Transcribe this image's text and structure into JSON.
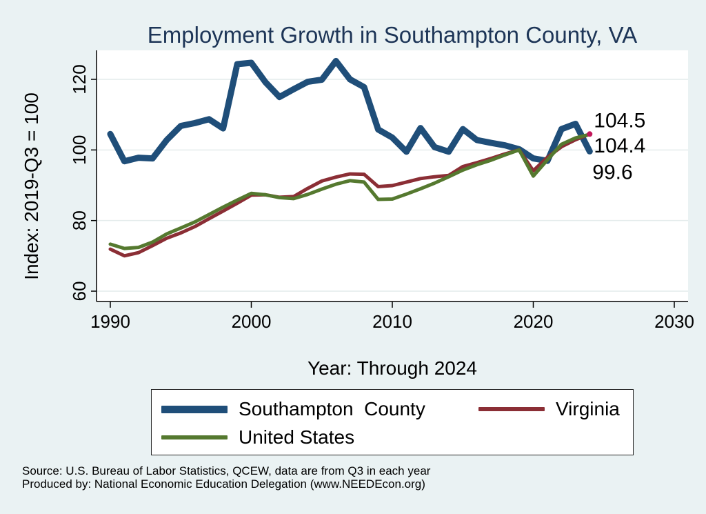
{
  "chart_data": {
    "type": "line",
    "title": "Employment Growth in Southampton County, VA",
    "xlabel": "Year: Through 2024",
    "ylabel": "Index: 2019-Q3 = 100",
    "xlim": [
      1990,
      2030
    ],
    "ylim": [
      57,
      128
    ],
    "x_ticks": [
      1990,
      2000,
      2010,
      2020,
      2030
    ],
    "y_ticks": [
      60,
      80,
      100,
      120
    ],
    "grid": true,
    "legend_position": "bottom",
    "series": [
      {
        "name": "Southampton  County",
        "color": "#1f4e79",
        "x": [
          1990,
          1991,
          1992,
          1993,
          1994,
          1995,
          1996,
          1997,
          1998,
          1999,
          2000,
          2001,
          2002,
          2003,
          2004,
          2005,
          2006,
          2007,
          2008,
          2009,
          2010,
          2011,
          2012,
          2013,
          2014,
          2015,
          2016,
          2017,
          2018,
          2019,
          2020,
          2021,
          2022,
          2023,
          2024
        ],
        "values": [
          104.5,
          96.8,
          97.8,
          97.6,
          102.8,
          106.8,
          107.6,
          108.7,
          106.1,
          124.3,
          124.7,
          119.2,
          115.0,
          117.2,
          119.3,
          119.9,
          125.2,
          120.0,
          117.8,
          105.8,
          103.5,
          99.5,
          106.2,
          100.8,
          99.5,
          105.9,
          102.8,
          102.0,
          101.3,
          100.2,
          97.6,
          96.9,
          105.9,
          107.4,
          99.6
        ]
      },
      {
        "name": "Virginia",
        "color": "#8b2e35",
        "x": [
          1990,
          1991,
          1992,
          1993,
          1994,
          1995,
          1996,
          1997,
          1998,
          1999,
          2000,
          2001,
          2002,
          2003,
          2004,
          2005,
          2006,
          2007,
          2008,
          2009,
          2010,
          2011,
          2012,
          2013,
          2014,
          2015,
          2016,
          2017,
          2018,
          2019,
          2020,
          2021,
          2022,
          2023,
          2024
        ],
        "values": [
          71.9,
          70.0,
          70.9,
          72.9,
          75.0,
          76.5,
          78.3,
          80.5,
          82.7,
          84.9,
          87.2,
          87.3,
          86.6,
          86.8,
          89.1,
          91.2,
          92.3,
          93.2,
          93.1,
          89.6,
          89.9,
          90.9,
          91.9,
          92.4,
          92.8,
          95.3,
          96.4,
          97.6,
          98.9,
          100.0,
          94.1,
          97.9,
          100.9,
          102.9,
          104.5
        ]
      },
      {
        "name": "United States",
        "color": "#55792f",
        "x": [
          1990,
          1991,
          1992,
          1993,
          1994,
          1995,
          1996,
          1997,
          1998,
          1999,
          2000,
          2001,
          2002,
          2003,
          2004,
          2005,
          2006,
          2007,
          2008,
          2009,
          2010,
          2011,
          2012,
          2013,
          2014,
          2015,
          2016,
          2017,
          2018,
          2019,
          2020,
          2021,
          2022,
          2023,
          2024
        ],
        "values": [
          73.3,
          72.1,
          72.4,
          73.9,
          76.2,
          77.9,
          79.6,
          81.7,
          83.8,
          85.8,
          87.7,
          87.3,
          86.5,
          86.2,
          87.4,
          88.9,
          90.3,
          91.3,
          90.9,
          86.0,
          86.1,
          87.5,
          89.0,
          90.6,
          92.4,
          94.3,
          95.8,
          97.1,
          98.6,
          100.0,
          92.6,
          97.2,
          101.6,
          103.4,
          104.4
        ]
      }
    ],
    "end_labels": [
      {
        "text": "104.5",
        "x": 2024,
        "y": 104.5
      },
      {
        "text": "104.4",
        "x": 2024,
        "y": 104.4
      },
      {
        "text": "99.6",
        "x": 2024,
        "y": 99.6
      }
    ],
    "end_marker_color": "#c2185b"
  },
  "source_lines": [
    "Source: U.S. Bureau of Labor Statistics, QCEW, data are from Q3 in each year",
    "Produced by: National Economic Education Delegation (www.NEEDEcon.org)"
  ]
}
